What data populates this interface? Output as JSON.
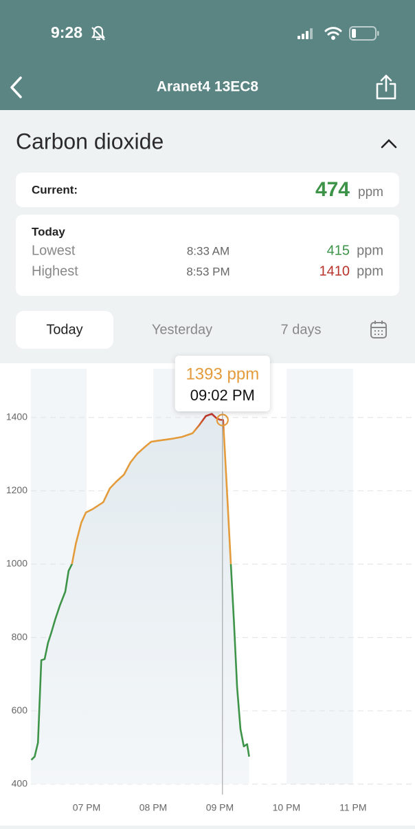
{
  "status_bar": {
    "time": "9:28"
  },
  "nav": {
    "title": "Aranet4 13EC8"
  },
  "section": {
    "title": "Carbon dioxide"
  },
  "current": {
    "label": "Current:",
    "value": 474,
    "unit": "ppm"
  },
  "today": {
    "title": "Today",
    "rows": [
      {
        "label": "Lowest",
        "time": "8:33 AM",
        "value": 415,
        "unit": "ppm"
      },
      {
        "label": "Highest",
        "time": "8:53 PM",
        "value": 1410,
        "unit": "ppm"
      }
    ]
  },
  "tabs": [
    "Today",
    "Yesterday",
    "7 days"
  ],
  "chart_data": {
    "type": "line",
    "line_colors": [
      "#3d9448",
      "#e39b3b",
      "#c0392b"
    ],
    "x": [
      18.17,
      18.22,
      18.27,
      18.32,
      18.37,
      18.42,
      18.47,
      18.53,
      18.6,
      18.68,
      18.73,
      18.78,
      18.84,
      18.92,
      18.99,
      19.09,
      19.25,
      19.35,
      19.45,
      19.56,
      19.66,
      19.76,
      19.87,
      19.97,
      20.12,
      20.28,
      20.43,
      20.59,
      20.69,
      20.79,
      20.88,
      20.95,
      21.0,
      21.05,
      21.1,
      21.16,
      21.21,
      21.26,
      21.31,
      21.36,
      21.41,
      21.44
    ],
    "values": [
      466,
      475,
      513,
      738,
      741,
      785,
      813,
      850,
      888,
      925,
      982,
      1000,
      1057,
      1113,
      1141,
      1150,
      1169,
      1207,
      1226,
      1244,
      1278,
      1301,
      1319,
      1334,
      1338,
      1342,
      1347,
      1357,
      1379,
      1404,
      1410,
      1398,
      1394,
      1393,
      1226,
      1019,
      850,
      663,
      550,
      503,
      509,
      475
    ],
    "xlim": [
      17.7,
      23.93
    ],
    "ylim": [
      287,
      1548
    ],
    "xticks": [
      {
        "value": 19,
        "label": "07 PM"
      },
      {
        "value": 20,
        "label": "08 PM"
      },
      {
        "value": 21,
        "label": "09 PM"
      },
      {
        "value": 22,
        "label": "10 PM"
      },
      {
        "value": 23,
        "label": "11 PM"
      }
    ],
    "yticks": [
      400,
      600,
      800,
      1000,
      1200,
      1400
    ],
    "grid": true,
    "tooltip": {
      "x": 21.04,
      "value": 1393,
      "value_label": "1393 ppm",
      "time": "09:02 PM"
    }
  }
}
